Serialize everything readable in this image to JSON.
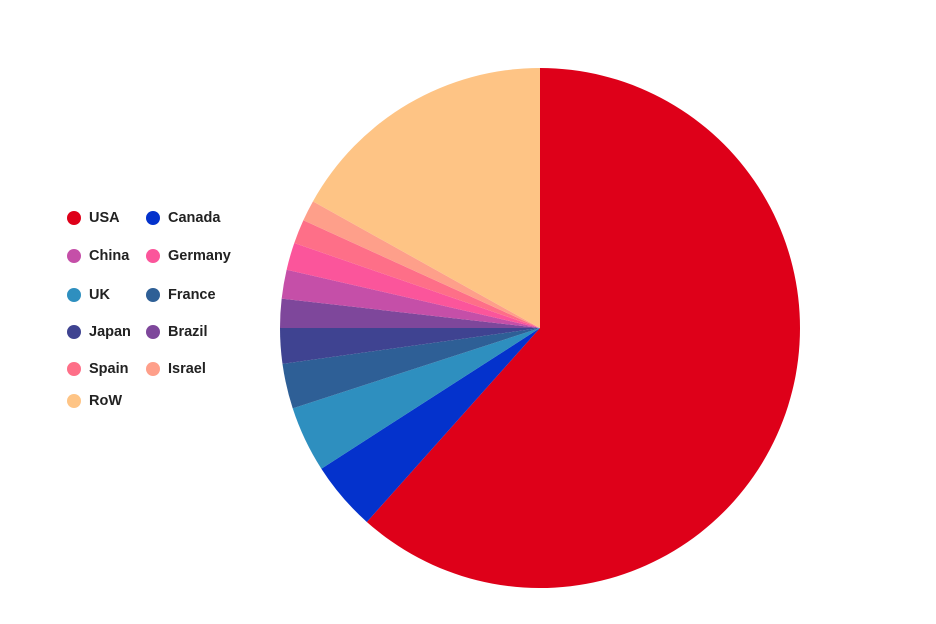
{
  "chart_data": {
    "type": "pie",
    "title": "",
    "start_angle": "12 o'clock, clockwise",
    "unit": "percent (estimated)",
    "slices": [
      {
        "name": "USA",
        "value": 61.6,
        "color": "#de0019"
      },
      {
        "name": "Canada",
        "value": 4.3,
        "color": "#0432cc"
      },
      {
        "name": "UK",
        "value": 4.1,
        "color": "#2e8fbf"
      },
      {
        "name": "France",
        "value": 2.8,
        "color": "#2e5f96"
      },
      {
        "name": "Japan",
        "value": 2.2,
        "color": "#3f4391"
      },
      {
        "name": "Brazil",
        "value": 1.8,
        "color": "#7e479b"
      },
      {
        "name": "China",
        "value": 1.8,
        "color": "#c54fa8"
      },
      {
        "name": "Germany",
        "value": 1.7,
        "color": "#fb559b"
      },
      {
        "name": "Spain",
        "value": 1.5,
        "color": "#fe6f88"
      },
      {
        "name": "Israel",
        "value": 1.3,
        "color": "#fe9f8a"
      },
      {
        "name": "RoW",
        "value": 16.9,
        "color": "#fec485"
      }
    ],
    "legend": {
      "placement": "left",
      "entries": [
        "USA",
        "Canada",
        "China",
        "Germany",
        "UK",
        "France",
        "Japan",
        "Brazil",
        "Spain",
        "Israel",
        "RoW"
      ]
    }
  }
}
